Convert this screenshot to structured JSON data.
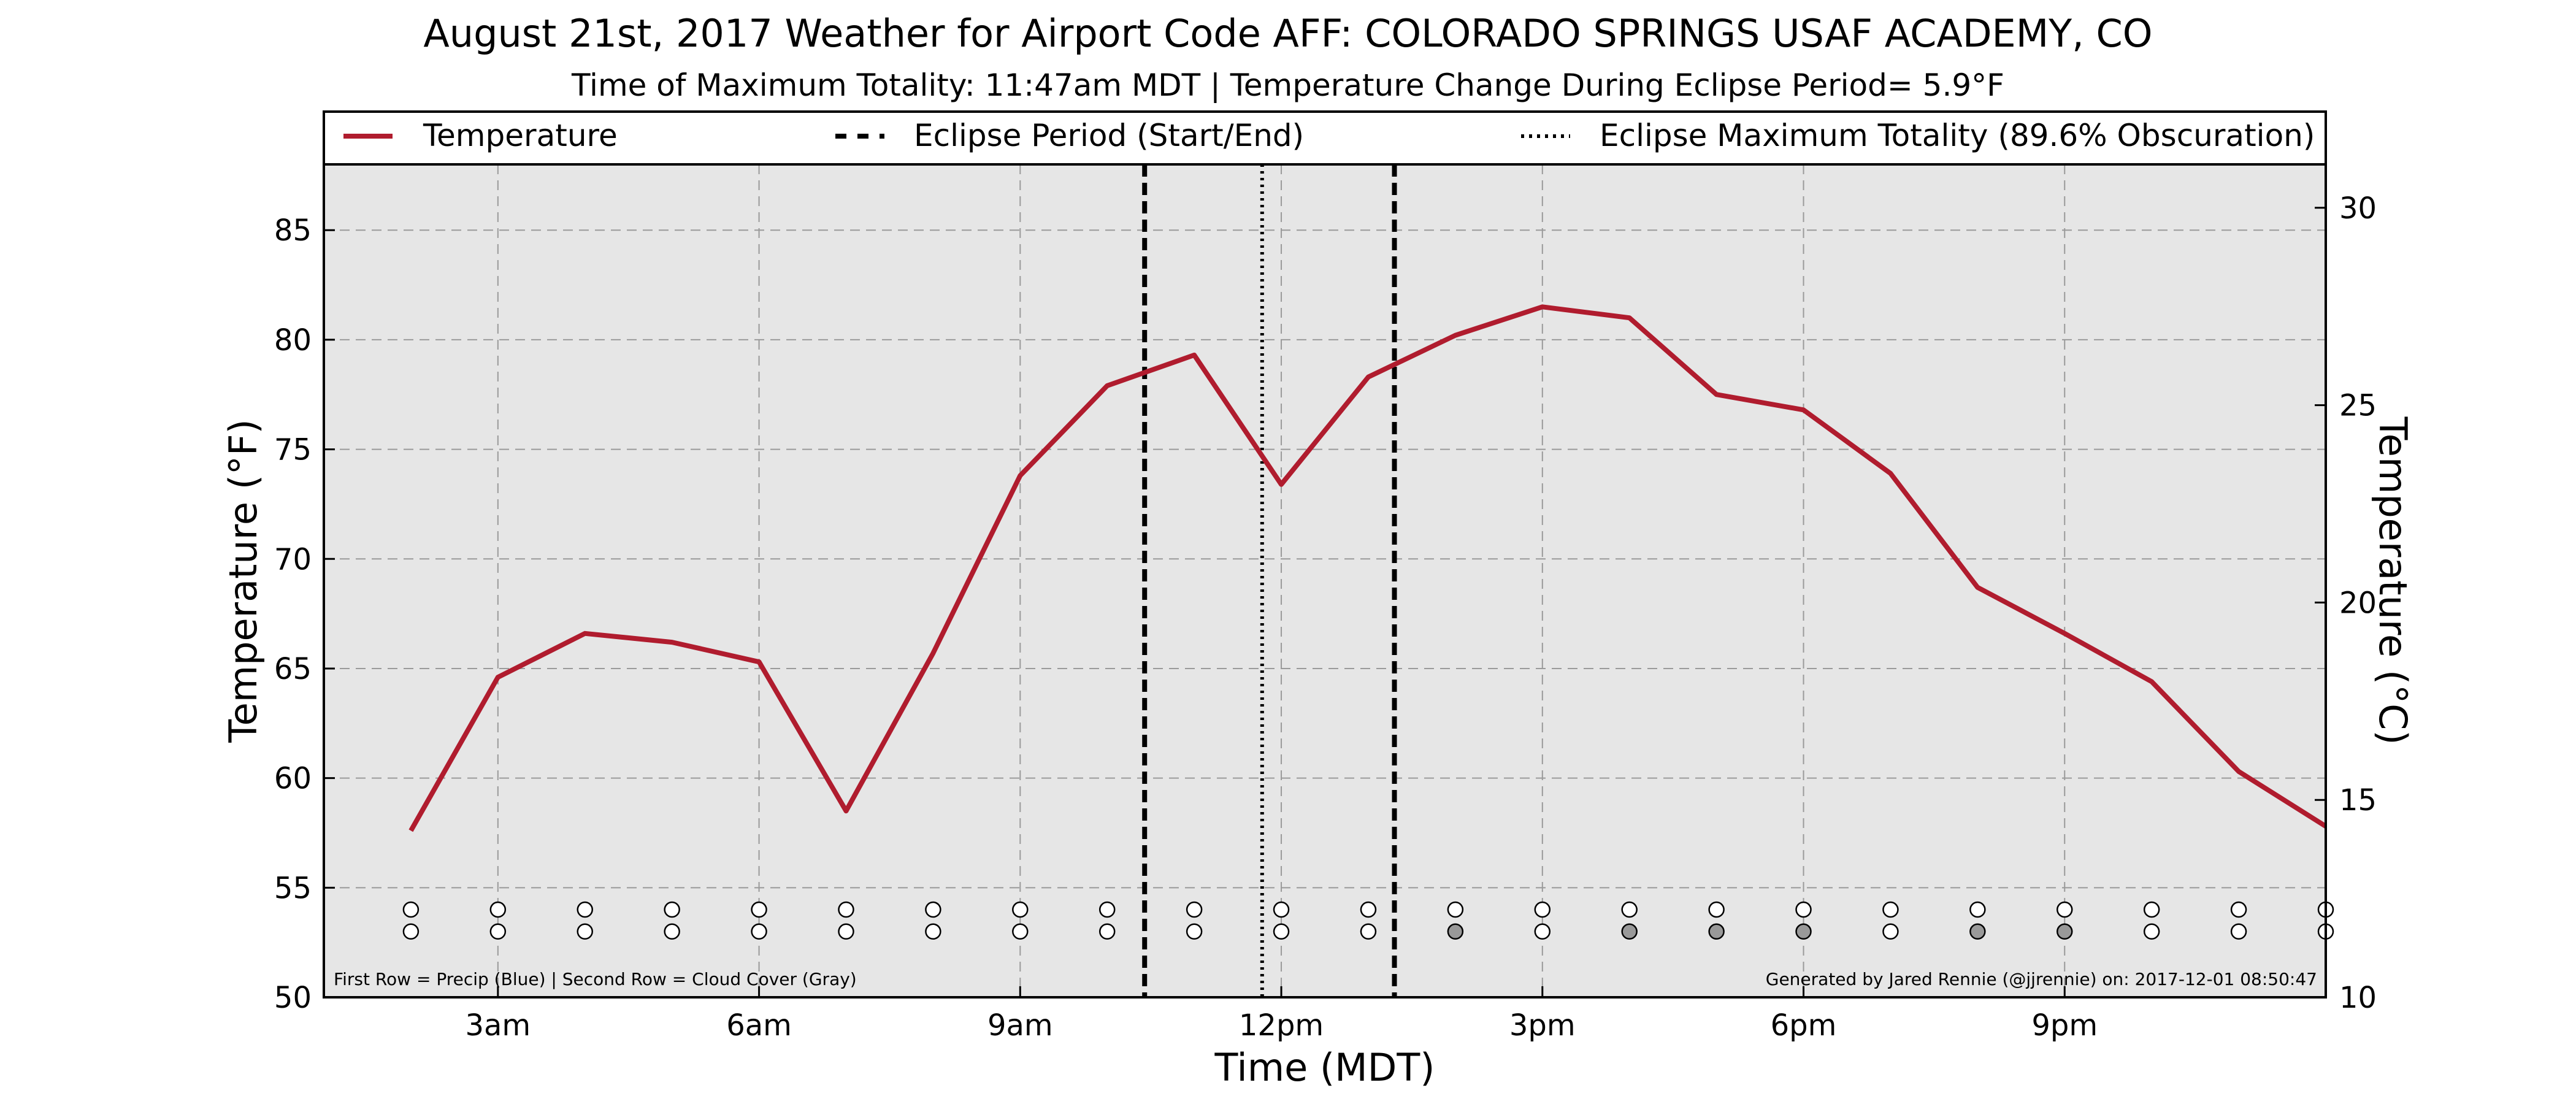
{
  "chart_data": {
    "type": "line",
    "title": "August 21st, 2017 Weather for Airport Code AFF: COLORADO SPRINGS USAF ACADEMY, CO",
    "subtitle": "Time of Maximum Totality: 11:47am MDT | Temperature Change During Eclipse Period= 5.9°F",
    "xlabel": "Time (MDT)",
    "ylabel": "Temperature (°F)",
    "ylabel_right": "Temperature (°C)",
    "xlim": [
      1,
      24
    ],
    "ylim": [
      50,
      88
    ],
    "ylim_right": [
      10,
      31.1
    ],
    "grid": true,
    "legend_position": "top",
    "x_ticks": [
      {
        "value": 3,
        "label": "3am"
      },
      {
        "value": 6,
        "label": "6am"
      },
      {
        "value": 9,
        "label": "9am"
      },
      {
        "value": 12,
        "label": "12pm"
      },
      {
        "value": 15,
        "label": "3pm"
      },
      {
        "value": 18,
        "label": "6pm"
      },
      {
        "value": 21,
        "label": "9pm"
      }
    ],
    "y_ticks": [
      50,
      55,
      60,
      65,
      70,
      75,
      80,
      85
    ],
    "y_ticks_right": [
      10,
      15,
      20,
      25,
      30
    ],
    "series": [
      {
        "name": "Temperature",
        "color": "#b01c2e",
        "x": [
          2,
          3,
          4,
          5,
          6,
          7,
          8,
          9,
          10,
          11,
          12,
          13,
          14,
          15,
          16,
          17,
          18,
          19,
          20,
          21,
          22,
          23,
          24
        ],
        "values": [
          57.6,
          64.6,
          66.6,
          66.2,
          65.3,
          58.5,
          65.7,
          73.8,
          77.9,
          79.3,
          73.4,
          78.3,
          80.2,
          81.5,
          81.0,
          77.5,
          76.8,
          73.9,
          68.7,
          66.6,
          64.4,
          60.3,
          57.8
        ]
      }
    ],
    "eclipse": {
      "start_end": [
        10.43,
        13.3
      ],
      "max_totality": 11.78,
      "legend_start_end": "Eclipse Period (Start/End)",
      "legend_max": "Eclipse Maximum Totality (89.6% Obscuration)"
    },
    "markers": {
      "x": [
        2,
        3,
        4,
        5,
        6,
        7,
        8,
        9,
        10,
        11,
        12,
        13,
        14,
        15,
        16,
        17,
        18,
        19,
        20,
        21,
        22,
        23,
        24
      ],
      "precip": [
        "white",
        "white",
        "white",
        "white",
        "white",
        "white",
        "white",
        "white",
        "white",
        "white",
        "white",
        "white",
        "white",
        "white",
        "white",
        "white",
        "white",
        "white",
        "white",
        "white",
        "white",
        "white",
        "white"
      ],
      "cloud_cover": [
        "white",
        "white",
        "white",
        "white",
        "white",
        "white",
        "white",
        "white",
        "white",
        "white",
        "white",
        "white",
        "gray",
        "white",
        "gray",
        "gray",
        "gray",
        "white",
        "gray",
        "gray",
        "white",
        "white",
        "white"
      ],
      "precip_y": 54.0,
      "cloud_y": 53.0,
      "gray_color": "#999999"
    },
    "footnote_left": "First Row = Precip (Blue) | Second Row = Cloud Cover (Gray)",
    "footnote_right": "Generated by Jared Rennie (@jjrennie) on: 2017-12-01 08:50:47",
    "plot_background": "#e6e6e6"
  }
}
